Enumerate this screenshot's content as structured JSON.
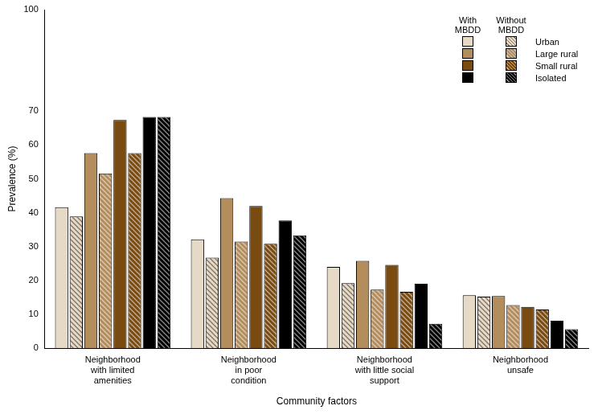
{
  "chart_data": {
    "type": "bar",
    "x_label": "Community factors",
    "y_label": "Prevalence (%)",
    "categories": [
      [
        "Neighborhood",
        "with limited",
        "amenities"
      ],
      [
        "Neighborhood",
        "in poor",
        "condition"
      ],
      [
        "Neighborhood",
        "with little social",
        "support"
      ],
      [
        "Neighborhood",
        "unsafe"
      ]
    ],
    "series": [
      {
        "name": "Urban",
        "group": "With MBDD",
        "color": "#e6d9c6",
        "values": [
          41.6,
          32.1,
          24.0,
          15.6
        ]
      },
      {
        "name": "Urban",
        "group": "Without MBDD",
        "color": "#e6d9c6",
        "values": [
          38.9,
          26.7,
          19.2,
          15.2
        ]
      },
      {
        "name": "Large rural",
        "group": "With MBDD",
        "color": "#b38d5c",
        "values": [
          57.6,
          44.3,
          25.8,
          15.4
        ]
      },
      {
        "name": "Large rural",
        "group": "Without MBDD",
        "color": "#b38d5c",
        "values": [
          51.6,
          31.5,
          17.3,
          12.7
        ]
      },
      {
        "name": "Small rural",
        "group": "With MBDD",
        "color": "#7a4b10",
        "values": [
          67.4,
          42.0,
          24.6,
          12.2
        ]
      },
      {
        "name": "Small rural",
        "group": "Without MBDD",
        "color": "#7a4b10",
        "values": [
          57.6,
          30.8,
          16.6,
          11.4
        ]
      },
      {
        "name": "Isolated",
        "group": "With MBDD",
        "color": "#000000",
        "values": [
          68.3,
          37.7,
          19.0,
          8.1
        ]
      },
      {
        "name": "Isolated",
        "group": "Without MBDD",
        "color": "#000000",
        "values": [
          68.3,
          33.3,
          7.2,
          5.6
        ]
      }
    ],
    "ylim": [
      0,
      100
    ],
    "yticks": [
      0,
      10,
      20,
      30,
      40,
      50,
      60,
      70,
      100
    ],
    "grid": false,
    "legend": "top-right"
  }
}
